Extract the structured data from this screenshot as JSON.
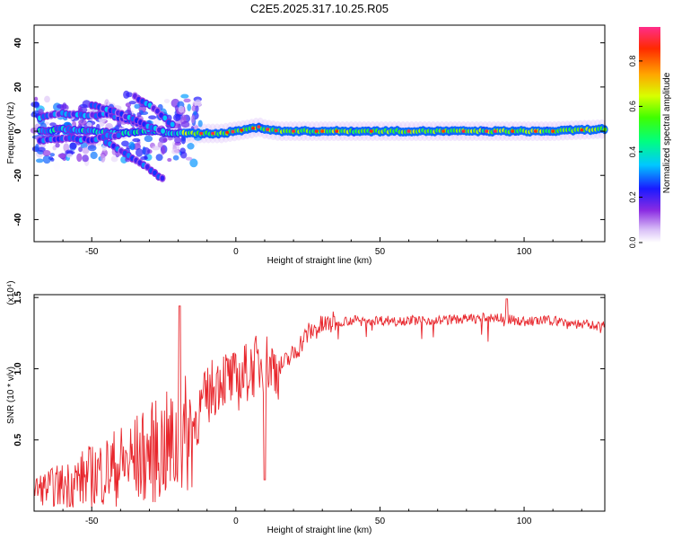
{
  "title": "C2E5.2025.317.10.25.R05",
  "chart_data": [
    {
      "type": "heatmap",
      "xlabel": "Height of straight line (km)",
      "ylabel": "Frequency (Hz)",
      "xlim": [
        -70,
        128
      ],
      "ylim": [
        -50,
        48
      ],
      "xticks": [
        -50,
        0,
        50,
        100
      ],
      "xtick_labels": [
        "-50",
        "0",
        "50",
        "100"
      ],
      "yticks": [
        -40,
        -20,
        0,
        20,
        40
      ],
      "ytick_labels": [
        "-40",
        "-20",
        "0",
        "20",
        "40"
      ],
      "colorbar": {
        "label": "Normalized spectral amplitude",
        "range": [
          0,
          0.95
        ],
        "ticks": [
          0,
          0.2,
          0.4,
          0.6,
          0.8
        ],
        "tick_labels": [
          "0.0",
          "0.2",
          "0.4",
          "0.6",
          "0.8"
        ]
      },
      "ridges": [
        {
          "name": "main",
          "points": [
            [
              -68,
              0
            ],
            [
              -60,
              1
            ],
            [
              -50,
              0
            ],
            [
              -40,
              -1
            ],
            [
              -30,
              0
            ],
            [
              -20,
              -1
            ],
            [
              -15,
              -1
            ],
            [
              -5,
              -1
            ],
            [
              0,
              0
            ],
            [
              5,
              1
            ],
            [
              8,
              2
            ],
            [
              10,
              1
            ],
            [
              15,
              0
            ],
            [
              20,
              0
            ],
            [
              40,
              0
            ],
            [
              60,
              0
            ],
            [
              80,
              0
            ],
            [
              95,
              0
            ],
            [
              110,
              0
            ],
            [
              128,
              1
            ]
          ]
        },
        {
          "name": "upper-branch",
          "points": [
            [
              -68,
              6
            ],
            [
              -60,
              8
            ],
            [
              -50,
              7
            ],
            [
              -45,
              8
            ],
            [
              -40,
              6
            ],
            [
              -35,
              4
            ],
            [
              -30,
              1
            ]
          ]
        },
        {
          "name": "upper-diagonal-1",
          "points": [
            [
              -50,
              12
            ],
            [
              -45,
              10
            ],
            [
              -40,
              8
            ],
            [
              -35,
              5
            ],
            [
              -30,
              2
            ],
            [
              -25,
              0
            ]
          ]
        },
        {
          "name": "upper-diagonal-2",
          "points": [
            [
              -35,
              16
            ],
            [
              -33,
              14
            ],
            [
              -30,
              12
            ],
            [
              -27,
              9
            ],
            [
              -24,
              5
            ],
            [
              -21,
              2
            ]
          ]
        },
        {
          "name": "lower-branch",
          "points": [
            [
              -68,
              -4
            ],
            [
              -60,
              -3
            ],
            [
              -50,
              -4
            ],
            [
              -45,
              -2
            ],
            [
              -40,
              -2
            ]
          ]
        },
        {
          "name": "lower-diagonal",
          "points": [
            [
              -45,
              -5
            ],
            [
              -40,
              -9
            ],
            [
              -35,
              -13
            ],
            [
              -30,
              -17
            ],
            [
              -25,
              -22
            ]
          ]
        }
      ]
    },
    {
      "type": "line",
      "xlabel": "Height of straight line (km)",
      "ylabel": "SNR (10 * v/v)",
      "scale_label": "(x10⁴)",
      "xlim": [
        -70,
        128
      ],
      "ylim": [
        0,
        1.52
      ],
      "xticks": [
        -50,
        0,
        50,
        100
      ],
      "xtick_labels": [
        "-50",
        "0",
        "50",
        "100"
      ],
      "yticks": [
        0.5,
        1.0,
        1.5
      ],
      "ytick_labels": [
        "0.5",
        "1.0",
        "1.5"
      ],
      "series": [
        {
          "name": "SNR",
          "color": "#e8262c",
          "x": [
            -70,
            -60,
            -50,
            -40,
            -30,
            -25,
            -20,
            -15,
            -10,
            -5,
            0,
            5,
            10,
            15,
            20,
            25,
            30,
            35,
            40,
            50,
            60,
            70,
            80,
            90,
            100,
            110,
            120,
            128
          ],
          "y": [
            0.15,
            0.18,
            0.25,
            0.32,
            0.4,
            0.45,
            0.45,
            0.6,
            0.8,
            0.95,
            0.9,
            1.0,
            1.05,
            1.0,
            1.1,
            1.25,
            1.3,
            1.33,
            1.34,
            1.34,
            1.34,
            1.34,
            1.35,
            1.36,
            1.33,
            1.34,
            1.31,
            1.3
          ]
        }
      ]
    }
  ]
}
